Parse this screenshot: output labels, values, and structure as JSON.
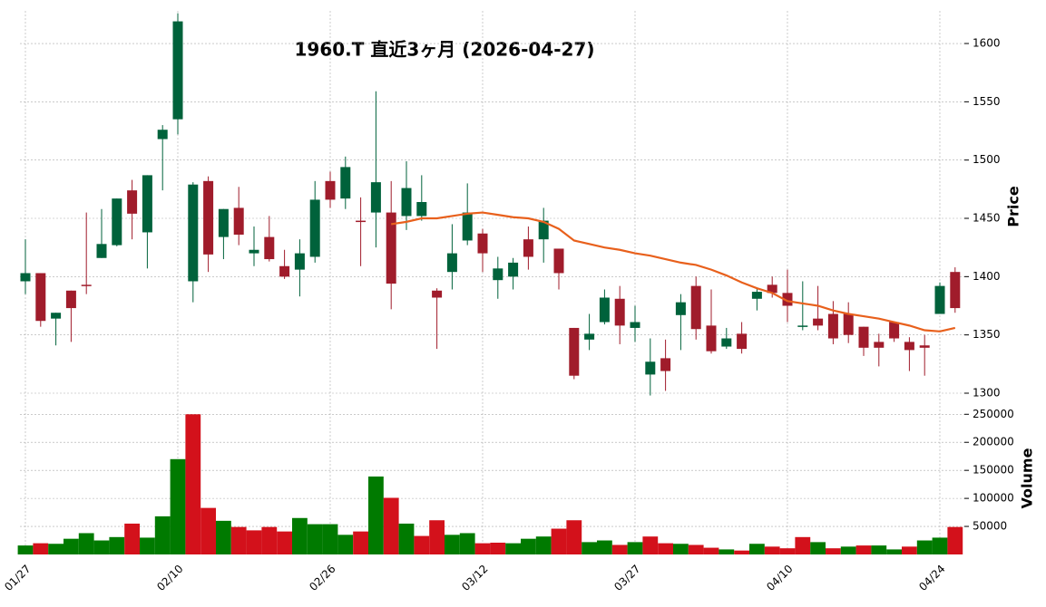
{
  "chart_data": {
    "type": "candlestick",
    "title": "1960.T  直近3ヶ月  (2026-04-27)",
    "categories": [
      "01/27",
      null,
      null,
      null,
      null,
      null,
      null,
      null,
      null,
      null,
      "02/10",
      null,
      null,
      null,
      null,
      null,
      null,
      null,
      null,
      null,
      "02/26",
      null,
      null,
      null,
      null,
      null,
      null,
      null,
      null,
      null,
      "03/12",
      null,
      null,
      null,
      null,
      null,
      null,
      null,
      null,
      null,
      "03/27",
      null,
      null,
      null,
      null,
      null,
      null,
      null,
      null,
      null,
      "04/10",
      null,
      null,
      null,
      null,
      null,
      null,
      null,
      null,
      null,
      "04/24",
      null
    ],
    "ylabel": "Price",
    "ylim": [
      1293,
      1628
    ],
    "yticks": [
      1300,
      1350,
      1400,
      1450,
      1500,
      1550,
      1600
    ],
    "grid": true,
    "up_color": "#00623b",
    "down_color": "#a01c2b",
    "ohlc": {
      "open": [
        1396,
        1403,
        1364,
        1388,
        1393,
        1416,
        1427,
        1474,
        1438,
        1518,
        1535,
        1396,
        1482,
        1434,
        1459,
        1420,
        1434,
        1409,
        1406,
        1417,
        1482,
        1467,
        1448,
        1455,
        1455,
        1452,
        1452,
        1388,
        1404,
        1431,
        1437,
        1397,
        1400,
        1432,
        1432,
        1424,
        1356,
        1346,
        1361,
        1381,
        1356,
        1316,
        1330,
        1367,
        1392,
        1358,
        1340,
        1351,
        1381,
        1393,
        1386,
        1357,
        1364,
        1368,
        1368,
        1357,
        1344,
        1361,
        1344,
        1341,
        1368,
        1404
      ],
      "high": [
        1432,
        1403,
        1369,
        1388,
        1455,
        1458,
        1467,
        1483,
        1487,
        1530,
        1626,
        1481,
        1486,
        1458,
        1477,
        1443,
        1452,
        1423,
        1432,
        1482,
        1490,
        1503,
        1468,
        1559,
        1482,
        1499,
        1487,
        1390,
        1445,
        1480,
        1441,
        1417,
        1416,
        1443,
        1459,
        1424,
        1356,
        1368,
        1389,
        1392,
        1375,
        1347,
        1346,
        1385,
        1400,
        1389,
        1356,
        1361,
        1390,
        1400,
        1406,
        1396,
        1392,
        1379,
        1378,
        1357,
        1351,
        1361,
        1348,
        1350,
        1395,
        1408
      ],
      "low": [
        1385,
        1357,
        1341,
        1344,
        1385,
        1416,
        1426,
        1432,
        1407,
        1474,
        1522,
        1378,
        1404,
        1415,
        1427,
        1409,
        1413,
        1398,
        1383,
        1412,
        1459,
        1458,
        1409,
        1425,
        1372,
        1440,
        1448,
        1338,
        1389,
        1427,
        1404,
        1381,
        1389,
        1406,
        1412,
        1389,
        1312,
        1337,
        1359,
        1342,
        1344,
        1298,
        1302,
        1337,
        1346,
        1334,
        1338,
        1334,
        1371,
        1382,
        1361,
        1354,
        1354,
        1342,
        1343,
        1332,
        1323,
        1344,
        1319,
        1315,
        1368,
        1369
      ],
      "close": [
        1403,
        1362,
        1369,
        1373,
        1392,
        1428,
        1467,
        1454,
        1487,
        1526,
        1619,
        1479,
        1419,
        1458,
        1436,
        1423,
        1415,
        1400,
        1420,
        1466,
        1466,
        1494,
        1447,
        1481,
        1394,
        1476,
        1464,
        1382,
        1420,
        1455,
        1420,
        1407,
        1412,
        1417,
        1448,
        1403,
        1315,
        1351,
        1382,
        1358,
        1361,
        1327,
        1319,
        1378,
        1355,
        1336,
        1347,
        1338,
        1387,
        1386,
        1375,
        1358,
        1358,
        1347,
        1350,
        1339,
        1339,
        1347,
        1337,
        1339,
        1392,
        1373
      ]
    },
    "ma": {
      "color": "#e8601c",
      "values": [
        null,
        null,
        null,
        null,
        null,
        null,
        null,
        null,
        null,
        null,
        null,
        null,
        null,
        null,
        null,
        null,
        null,
        null,
        null,
        null,
        null,
        null,
        null,
        null,
        1445,
        1447,
        1450,
        1450,
        1452,
        1454,
        1455,
        1453,
        1451,
        1450,
        1447,
        1441,
        1431,
        1428,
        1425,
        1423,
        1420,
        1418,
        1415,
        1412,
        1410,
        1406,
        1401,
        1395,
        1390,
        1386,
        1379,
        1377,
        1375,
        1371,
        1368,
        1366,
        1364,
        1361,
        1358,
        1354,
        1353,
        1356
      ]
    },
    "volume": {
      "ylabel": "Volume",
      "ylim": [
        0,
        265000
      ],
      "yticks": [
        50000,
        100000,
        150000,
        200000,
        250000
      ],
      "up_color": "#007a00",
      "down_color": "#d3111b",
      "values": [
        16000,
        20000,
        19000,
        28000,
        38000,
        25000,
        31000,
        55000,
        30000,
        68000,
        170000,
        250000,
        83000,
        60000,
        49000,
        43000,
        49000,
        41000,
        65000,
        54000,
        54000,
        35000,
        41000,
        139000,
        101000,
        55000,
        33000,
        61000,
        35000,
        38000,
        20000,
        21000,
        20000,
        28000,
        32000,
        46000,
        61000,
        22000,
        25000,
        17000,
        22000,
        32000,
        20000,
        19000,
        17000,
        12000,
        9000,
        7000,
        19000,
        14000,
        11000,
        31000,
        22000,
        11000,
        14000,
        16000,
        16000,
        9000,
        14000,
        25000,
        30000,
        49000
      ]
    }
  }
}
